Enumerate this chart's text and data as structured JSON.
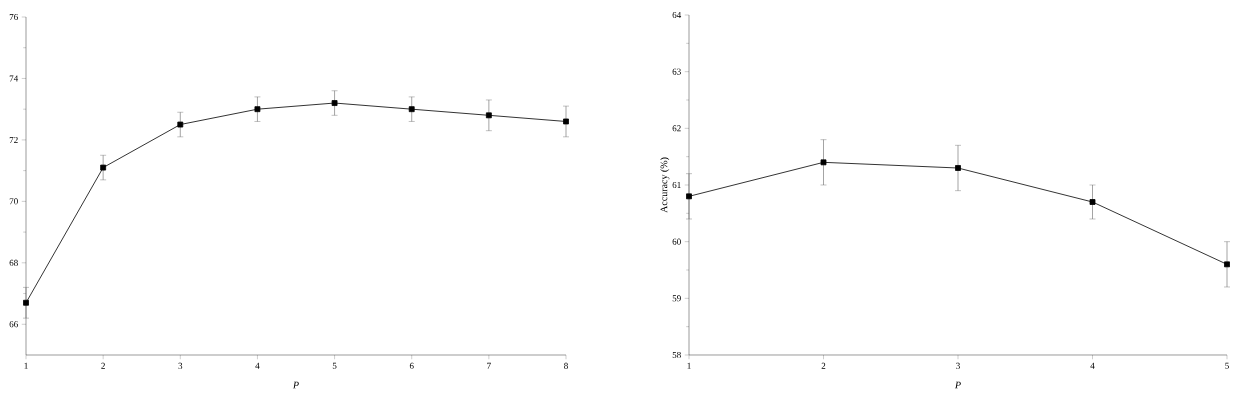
{
  "chart_data": [
    {
      "type": "line",
      "x": [
        1,
        2,
        3,
        4,
        5,
        6,
        7,
        8
      ],
      "xlabel": "P",
      "marker": "square",
      "line_style": "solid",
      "series": [
        {
          "color": "#000000",
          "values": [
            66.7,
            71.1,
            72.5,
            73.0,
            73.2,
            73.0,
            72.8,
            72.6
          ],
          "errors": [
            0.5,
            0.4,
            0.4,
            0.4,
            0.4,
            0.4,
            0.5,
            0.5
          ]
        }
      ],
      "xlim": [
        1,
        8
      ],
      "ylim": [
        65,
        76
      ],
      "xticks": [
        1,
        2,
        3,
        4,
        5,
        6,
        7,
        8
      ],
      "yticks": [
        66,
        68,
        70,
        72,
        74,
        76
      ]
    },
    {
      "type": "line",
      "x": [
        1,
        2,
        3,
        4,
        5
      ],
      "xlabel": "P",
      "ylabel": "Accuracy (%)",
      "marker": "square",
      "line_style": "solid",
      "series": [
        {
          "color": "#000000",
          "values": [
            60.8,
            61.4,
            61.3,
            60.7,
            59.6
          ],
          "errors": [
            0.4,
            0.4,
            0.4,
            0.3,
            0.4
          ]
        }
      ],
      "xlim": [
        1,
        5
      ],
      "ylim": [
        58,
        64
      ],
      "xticks": [
        1,
        2,
        3,
        4,
        5
      ],
      "yticks": [
        58,
        59,
        60,
        61,
        62,
        63,
        64
      ]
    }
  ]
}
